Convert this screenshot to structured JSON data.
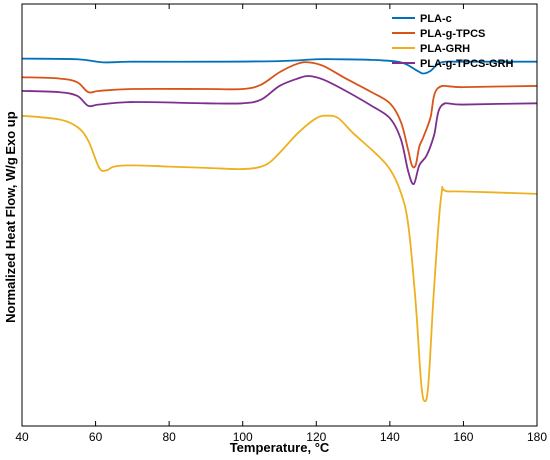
{
  "chart_data": {
    "type": "line",
    "xlabel": "Temperature, °C",
    "ylabel": "Normalized Heat Flow, W/g",
    "ylabel_extra": "Exo up",
    "xlim": [
      40,
      180
    ],
    "x_ticks": [
      40,
      60,
      80,
      100,
      120,
      140,
      160,
      180
    ],
    "y_ticks_shown": false,
    "grid": false,
    "legend_position": "top-right",
    "series": [
      {
        "name": "PLA-c",
        "color": "#0072BD",
        "points": [
          [
            40,
            0.96
          ],
          [
            55,
            0.955
          ],
          [
            62,
            0.93
          ],
          [
            70,
            0.935
          ],
          [
            90,
            0.935
          ],
          [
            110,
            0.94
          ],
          [
            120,
            0.955
          ],
          [
            125,
            0.955
          ],
          [
            135,
            0.95
          ],
          [
            143,
            0.93
          ],
          [
            147,
            0.87
          ],
          [
            149,
            0.84
          ],
          [
            151,
            0.86
          ],
          [
            154,
            0.93
          ],
          [
            160,
            0.935
          ],
          [
            180,
            0.935
          ]
        ]
      },
      {
        "name": "PLA-g-TPCS",
        "color": "#D95319",
        "points": [
          [
            40,
            0.81
          ],
          [
            50,
            0.8
          ],
          [
            55,
            0.77
          ],
          [
            58,
            0.69
          ],
          [
            61,
            0.7
          ],
          [
            70,
            0.715
          ],
          [
            90,
            0.715
          ],
          [
            100,
            0.715
          ],
          [
            105,
            0.75
          ],
          [
            110,
            0.85
          ],
          [
            115,
            0.92
          ],
          [
            118,
            0.93
          ],
          [
            122,
            0.9
          ],
          [
            128,
            0.8
          ],
          [
            135,
            0.69
          ],
          [
            140,
            0.6
          ],
          [
            143,
            0.45
          ],
          [
            145,
            0.22
          ],
          [
            146,
            0.1
          ],
          [
            147,
            0.1
          ],
          [
            148,
            0.25
          ],
          [
            149,
            0.32
          ],
          [
            151,
            0.48
          ],
          [
            153,
            0.72
          ],
          [
            160,
            0.73
          ],
          [
            180,
            0.74
          ]
        ]
      },
      {
        "name": "PLA-GRH",
        "color": "#EDB120",
        "points": [
          [
            40,
            0.5
          ],
          [
            50,
            0.47
          ],
          [
            55,
            0.41
          ],
          [
            58,
            0.3
          ],
          [
            61,
            0.08
          ],
          [
            63,
            0.06
          ],
          [
            65,
            0.09
          ],
          [
            70,
            0.1
          ],
          [
            80,
            0.09
          ],
          [
            90,
            0.08
          ],
          [
            100,
            0.07
          ],
          [
            106,
            0.1
          ],
          [
            110,
            0.2
          ],
          [
            115,
            0.36
          ],
          [
            120,
            0.48
          ],
          [
            123,
            0.5
          ],
          [
            126,
            0.48
          ],
          [
            130,
            0.36
          ],
          [
            136,
            0.2
          ],
          [
            140,
            0.07
          ],
          [
            143,
            -0.12
          ],
          [
            145,
            -0.38
          ],
          [
            147,
            -1.0
          ],
          [
            148.5,
            -1.65
          ],
          [
            149.5,
            -1.8
          ],
          [
            150.5,
            -1.65
          ],
          [
            152,
            -0.9
          ],
          [
            154,
            -0.14
          ],
          [
            156,
            -0.11
          ],
          [
            170,
            -0.12
          ],
          [
            180,
            -0.13
          ]
        ]
      },
      {
        "name": "PLA-g-TPCS-GRH",
        "color": "#7E2F8E",
        "points": [
          [
            40,
            0.7
          ],
          [
            50,
            0.69
          ],
          [
            55,
            0.66
          ],
          [
            58,
            0.58
          ],
          [
            61,
            0.59
          ],
          [
            70,
            0.61
          ],
          [
            90,
            0.6
          ],
          [
            100,
            0.6
          ],
          [
            105,
            0.63
          ],
          [
            110,
            0.74
          ],
          [
            115,
            0.8
          ],
          [
            118,
            0.82
          ],
          [
            122,
            0.79
          ],
          [
            128,
            0.7
          ],
          [
            135,
            0.58
          ],
          [
            140,
            0.48
          ],
          [
            143,
            0.31
          ],
          [
            145,
            0.05
          ],
          [
            146.5,
            -0.05
          ],
          [
            148,
            0.1
          ],
          [
            150,
            0.18
          ],
          [
            152,
            0.34
          ],
          [
            154,
            0.58
          ],
          [
            160,
            0.59
          ],
          [
            180,
            0.6
          ]
        ]
      }
    ]
  }
}
